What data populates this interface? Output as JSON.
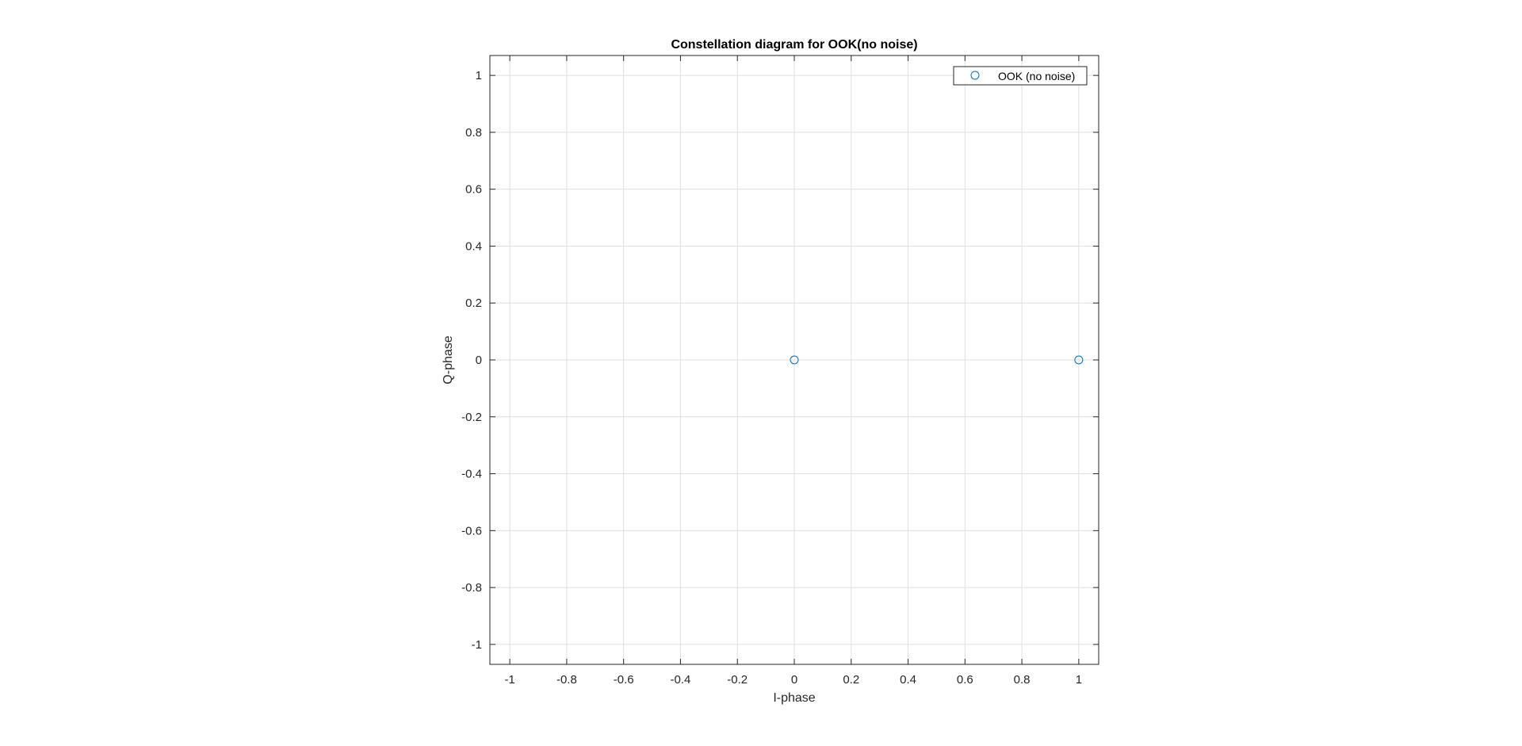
{
  "chart_data": {
    "type": "scatter",
    "title": "Constellation diagram for OOK(no noise)",
    "xlabel": "I-phase",
    "ylabel": "Q-phase",
    "xlim": [
      -1.07,
      1.07
    ],
    "ylim": [
      -1.07,
      1.07
    ],
    "xticks": [
      -1,
      -0.8,
      -0.6,
      -0.4,
      -0.2,
      0,
      0.2,
      0.4,
      0.6,
      0.8,
      1
    ],
    "yticks": [
      -1,
      -0.8,
      -0.6,
      -0.4,
      -0.2,
      0,
      0.2,
      0.4,
      0.6,
      0.8,
      1
    ],
    "grid": true,
    "legend_position": "top-right",
    "series": [
      {
        "name": "OOK (no noise)",
        "marker": "circle-open",
        "color": "#0072BD",
        "x": [
          0,
          1
        ],
        "y": [
          0,
          0
        ]
      }
    ]
  }
}
